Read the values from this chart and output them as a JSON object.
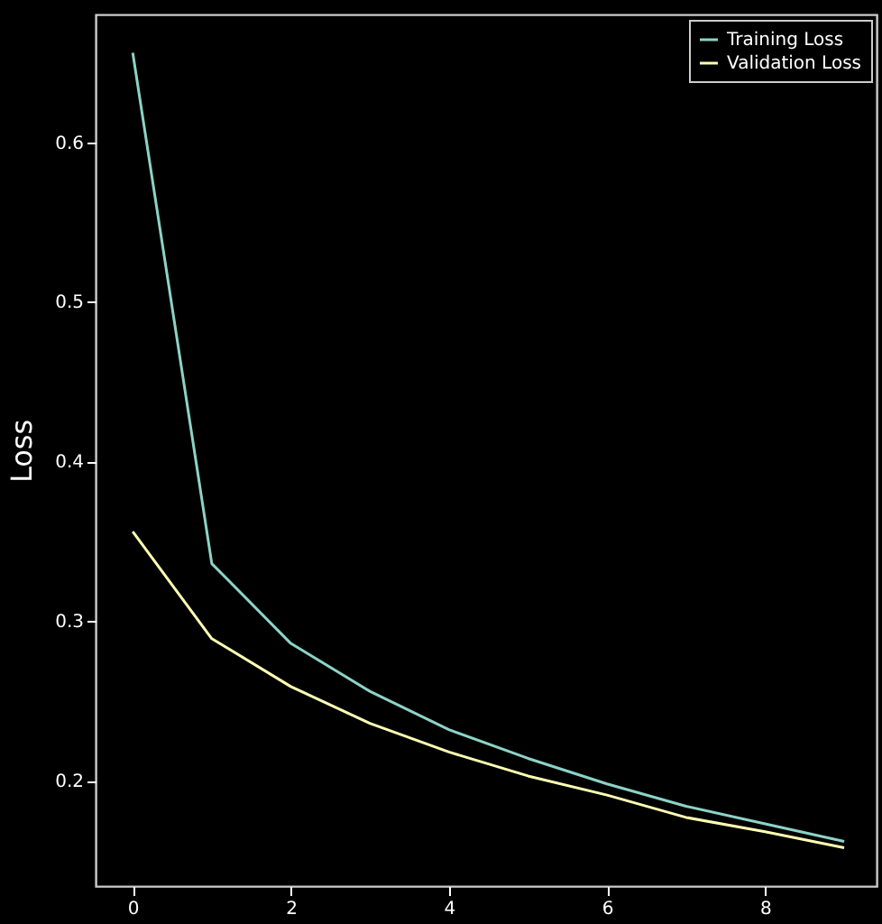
{
  "chart_data": {
    "type": "line",
    "ylabel": "Loss",
    "x": [
      0,
      1,
      2,
      3,
      4,
      5,
      6,
      7,
      8,
      9
    ],
    "xlim": [
      -0.47,
      9.41
    ],
    "ylim": [
      0.134,
      0.68
    ],
    "xticks": [
      0,
      2,
      4,
      6,
      8
    ],
    "yticks": [
      0.2,
      0.3,
      0.4,
      0.5,
      0.6
    ],
    "legend": "top right",
    "series": [
      {
        "name": "Training Loss",
        "color": "#8dd3c7",
        "values": [
          0.656,
          0.336,
          0.286,
          0.256,
          0.232,
          0.214,
          0.198,
          0.184,
          0.173,
          0.162
        ]
      },
      {
        "name": "Validation Loss",
        "color": "#feffb3",
        "values": [
          0.356,
          0.289,
          0.259,
          0.236,
          0.218,
          0.203,
          0.191,
          0.177,
          0.168,
          0.158
        ]
      }
    ]
  }
}
